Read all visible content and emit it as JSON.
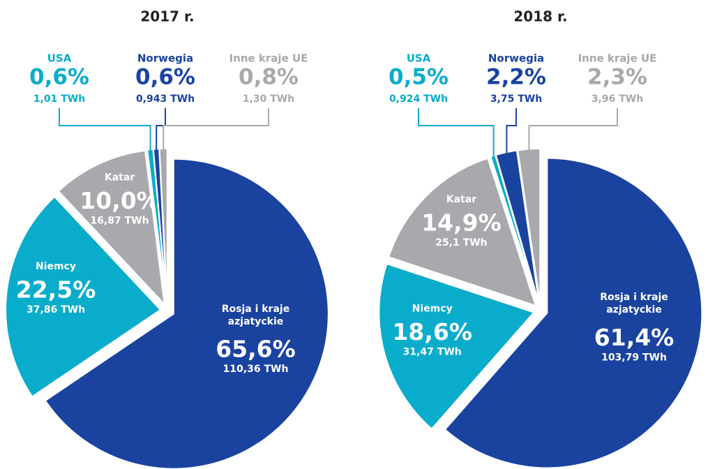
{
  "chart_data": [
    {
      "type": "pie",
      "title": "2017 r.",
      "categories": [
        "Rosja i kraje azjatyckie",
        "Niemcy",
        "Katar",
        "USA",
        "Norwegia",
        "Inne kraje UE"
      ],
      "values": [
        65.6,
        22.5,
        10.0,
        0.6,
        0.6,
        0.8
      ],
      "value_labels": [
        "65,6%",
        "22,5%",
        "10,0%",
        "0,6%",
        "0,6%",
        "0,8%"
      ],
      "twh_labels": [
        "110,36 TWh",
        "37,86 TWh",
        "16,87 TWh",
        "1,01 TWh",
        "0,943 TWh",
        "1,30 TWh"
      ],
      "colors": [
        "#1a43a0",
        "#0aaccb",
        "#a7a9ac",
        "#0aaccb",
        "#1a43a0",
        "#a7a9ac"
      ]
    },
    {
      "type": "pie",
      "title": "2018 r.",
      "categories": [
        "Rosja i kraje azjatyckie",
        "Niemcy",
        "Katar",
        "USA",
        "Norwegia",
        "Inne kraje UE"
      ],
      "values": [
        61.4,
        18.6,
        14.9,
        0.5,
        2.2,
        2.3
      ],
      "value_labels": [
        "61,4%",
        "18,6%",
        "14,9%",
        "0,5%",
        "2,2%",
        "2,3%"
      ],
      "twh_labels": [
        "103,79 TWh",
        "31,47 TWh",
        "25,1 TWh",
        "0,924 TWh",
        "3,75 TWh",
        "3,96 TWh"
      ],
      "colors": [
        "#1a43a0",
        "#0aaccb",
        "#a7a9ac",
        "#0aaccb",
        "#1a43a0",
        "#a7a9ac"
      ]
    }
  ]
}
